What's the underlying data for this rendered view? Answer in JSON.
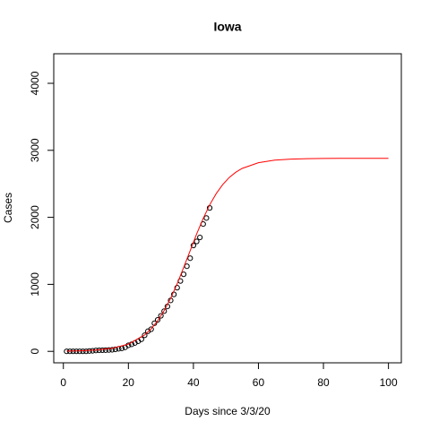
{
  "chart_data": {
    "type": "scatter",
    "title": "Iowa",
    "xlabel": "Days since 3/3/20",
    "ylabel": "Cases",
    "xlim": [
      -2.96,
      103.96
    ],
    "ylim": [
      -171,
      4441
    ],
    "xticks": [
      0,
      20,
      40,
      60,
      80,
      100
    ],
    "yticks": [
      0,
      1000,
      2000,
      3000,
      4000
    ],
    "series": [
      {
        "kind": "points",
        "color": "#000000",
        "x": [
          1,
          2,
          3,
          4,
          5,
          6,
          7,
          8,
          9,
          10,
          11,
          12,
          13,
          14,
          15,
          16,
          17,
          18,
          19,
          20,
          21,
          22,
          23,
          24,
          25,
          26,
          27,
          28,
          29,
          30,
          31,
          32,
          33,
          34,
          35,
          36,
          37,
          38,
          39,
          40,
          41,
          42,
          43,
          44,
          45
        ],
        "values": [
          0,
          0,
          0,
          0,
          0,
          0,
          0,
          5,
          8,
          13,
          15,
          17,
          18,
          20,
          23,
          30,
          38,
          45,
          60,
          90,
          105,
          125,
          150,
          180,
          240,
          300,
          330,
          420,
          470,
          530,
          600,
          670,
          760,
          850,
          950,
          1050,
          1150,
          1270,
          1390,
          1580,
          1640,
          1700,
          1900,
          1990,
          2140
        ]
      },
      {
        "kind": "line",
        "color": "#ff0000",
        "x": [
          1,
          5,
          10,
          15,
          20,
          25,
          27,
          29,
          31,
          33,
          35,
          37,
          39,
          41,
          43,
          45,
          47,
          49,
          51,
          53,
          55,
          60,
          65,
          70,
          75,
          80,
          85,
          90,
          95,
          100
        ],
        "values": [
          3.9,
          7.9,
          18.9,
          45.3,
          107,
          245,
          336,
          456,
          607,
          793,
          1010,
          1251,
          1503,
          1752,
          1982,
          2184,
          2353,
          2488,
          2593,
          2672,
          2730,
          2816,
          2853,
          2869,
          2875,
          2878,
          2879,
          2880,
          2880,
          2880
        ]
      }
    ]
  }
}
